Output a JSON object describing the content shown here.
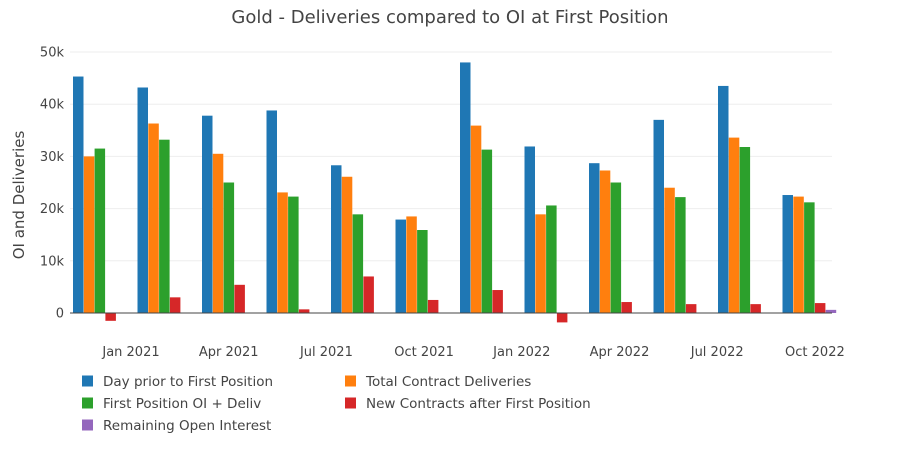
{
  "chart_data": {
    "type": "bar",
    "title": "Gold - Deliveries compared to OI at First Position",
    "xlabel": "",
    "ylabel": "OI and Deliveries",
    "ylim": [
      -2500,
      52000
    ],
    "yticks": [
      0,
      10000,
      20000,
      30000,
      40000,
      50000
    ],
    "ytick_labels": [
      "0",
      "10k",
      "20k",
      "30k",
      "40k",
      "50k"
    ],
    "xtick_labels": [
      "Jan 2021",
      "Apr 2021",
      "Jul 2021",
      "Oct 2021",
      "Jan 2022",
      "Apr 2022",
      "Jul 2022",
      "Oct 2022"
    ],
    "categories": [
      "Dec 2020",
      "Feb 2021",
      "Apr 2021",
      "Jun 2021",
      "Aug 2021",
      "Oct 2021",
      "Dec 2021",
      "Feb 2022",
      "Apr 2022",
      "Jun 2022",
      "Aug 2022",
      "Oct 2022"
    ],
    "grid": true,
    "legend_position": "bottom",
    "series": [
      {
        "name": "Day prior to First Position",
        "color": "#1f77b4",
        "values": [
          45300,
          43200,
          37800,
          38800,
          28300,
          17900,
          48000,
          31900,
          28700,
          37000,
          43500,
          22600
        ]
      },
      {
        "name": "Total Contract Deliveries",
        "color": "#ff7f0e",
        "values": [
          30000,
          36300,
          30500,
          23100,
          26100,
          18500,
          35900,
          18900,
          27300,
          24000,
          33600,
          22300
        ]
      },
      {
        "name": "First Position OI + Deliv",
        "color": "#2ca02c",
        "values": [
          31500,
          33200,
          25000,
          22300,
          18900,
          15900,
          31300,
          20600,
          25000,
          22200,
          31800,
          21200
        ]
      },
      {
        "name": "New Contracts after First Position",
        "color": "#d62728",
        "values": [
          -1500,
          3000,
          5400,
          700,
          7000,
          2500,
          4400,
          -1800,
          2100,
          1700,
          1700,
          1900
        ]
      },
      {
        "name": "Remaining Open Interest",
        "color": "#9467bd",
        "values": [
          0,
          0,
          0,
          0,
          0,
          0,
          0,
          0,
          0,
          0,
          0,
          600
        ]
      }
    ]
  }
}
